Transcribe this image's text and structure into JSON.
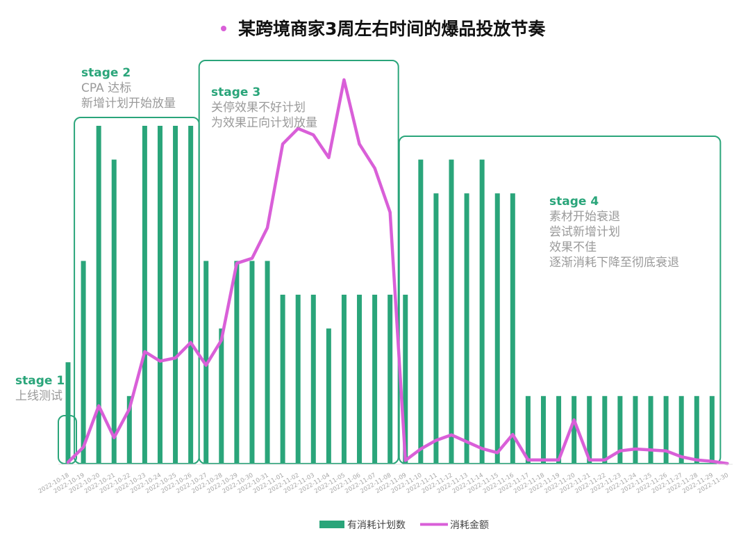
{
  "colors": {
    "bar": "#2aa57a",
    "line": "#d95fd8",
    "stage_box": "#2aa57a",
    "stage_title": "#2aa57a",
    "stage_desc": "#9a9a9a",
    "title_dot": "#d95fd8"
  },
  "chart_data": {
    "type": "bar",
    "title": "某跨境商家3周左右时间的爆品投放节奏",
    "categories": [
      "2022-10-18",
      "2022-10-19",
      "2022-10-20",
      "2022-10-21",
      "2022-10-22",
      "2022-10-23",
      "2022-10-24",
      "2022-10-25",
      "2022-10-26",
      "2022-10-27",
      "2022-10-28",
      "2022-10-29",
      "2022-10-30",
      "2022-10-31",
      "2022-11-01",
      "2022-11-02",
      "2022-11-03",
      "2022-11-04",
      "2022-11-05",
      "2022-11-06",
      "2022-11-07",
      "2022-11-08",
      "2022-11-09",
      "2022-11-10",
      "2022-11-11",
      "2022-11-12",
      "2022-11-13",
      "2022-11-14",
      "2022-11-15",
      "2022-11-16",
      "2022-11-17",
      "2022-11-18",
      "2022-11-19",
      "2022-11-20",
      "2022-11-21",
      "2022-11-22",
      "2022-11-23",
      "2022-11-24",
      "2022-11-25",
      "2022-11-26",
      "2022-11-27",
      "2022-11-28",
      "2022-11-29",
      "2022-11-30"
    ],
    "series": [
      {
        "name": "有消耗计划数",
        "type": "bar",
        "values": [
          [
            1,
            6
          ],
          [
            1,
            12
          ],
          [
            1,
            20
          ],
          [
            1,
            18
          ],
          [
            1,
            4
          ],
          [
            1,
            20
          ],
          [
            1,
            20
          ],
          [
            1,
            20
          ],
          [
            1,
            20
          ],
          [
            1,
            12
          ],
          [
            1,
            8
          ],
          [
            1,
            12
          ],
          [
            1,
            12
          ],
          [
            1,
            12
          ],
          [
            1,
            10
          ],
          [
            1,
            10
          ],
          [
            1,
            10
          ],
          [
            1,
            8
          ],
          [
            1,
            10
          ],
          [
            1,
            10
          ],
          [
            1,
            10
          ],
          [
            1,
            10
          ],
          [
            1,
            10
          ],
          [
            1,
            18
          ],
          [
            1,
            16
          ],
          [
            1,
            18
          ],
          [
            1,
            16
          ],
          [
            1,
            18
          ],
          [
            1,
            16
          ],
          [
            1,
            16
          ],
          [
            1,
            4
          ],
          [
            1,
            4
          ],
          [
            1,
            4
          ],
          [
            1,
            4
          ],
          [
            1,
            4
          ],
          [
            1,
            4
          ],
          [
            1,
            4
          ],
          [
            1,
            4
          ],
          [
            1,
            4
          ],
          [
            1,
            4
          ],
          [
            1,
            4
          ],
          [
            1,
            4
          ],
          [
            1,
            4
          ],
          [
            0,
            0
          ]
        ]
      },
      {
        "name": "消耗金额",
        "type": "line",
        "values": [
          0.3,
          3.6,
          12.7,
          5.7,
          12,
          24.6,
          22.5,
          23.2,
          26.6,
          21.6,
          27.1,
          44,
          45.1,
          51.8,
          70.2,
          73.6,
          72.2,
          67.2,
          84.3,
          70.2,
          64.9,
          55.2,
          0.7,
          3.2,
          5.1,
          6.3,
          4.8,
          3.3,
          2.4,
          6.4,
          0.8,
          0.8,
          0.8,
          9.6,
          0.8,
          0.8,
          2.8,
          3.2,
          3,
          2.8,
          1.5,
          0.8,
          0.5,
          0
        ]
      }
    ],
    "legend": "bottom-center",
    "grid": false,
    "stages": [
      {
        "title": "stage 1",
        "lines": [
          "上线测试"
        ],
        "start": "2022-10-18",
        "end": "2022-10-18"
      },
      {
        "title": "stage 2",
        "lines": [
          "CPA 达标",
          "新增计划开始放量"
        ],
        "start": "2022-10-19",
        "end": "2022-10-26"
      },
      {
        "title": "stage 3",
        "lines": [
          "关停效果不好计划",
          "为效果正向计划放量"
        ],
        "start": "2022-10-27",
        "end": "2022-11-08"
      },
      {
        "title": "stage 4",
        "lines": [
          "素材开始衰退",
          "尝试新增计划",
          "效果不佳",
          "逐渐消耗下降至彻底衰退"
        ],
        "start": "2022-11-09",
        "end": "2022-11-29"
      }
    ]
  }
}
